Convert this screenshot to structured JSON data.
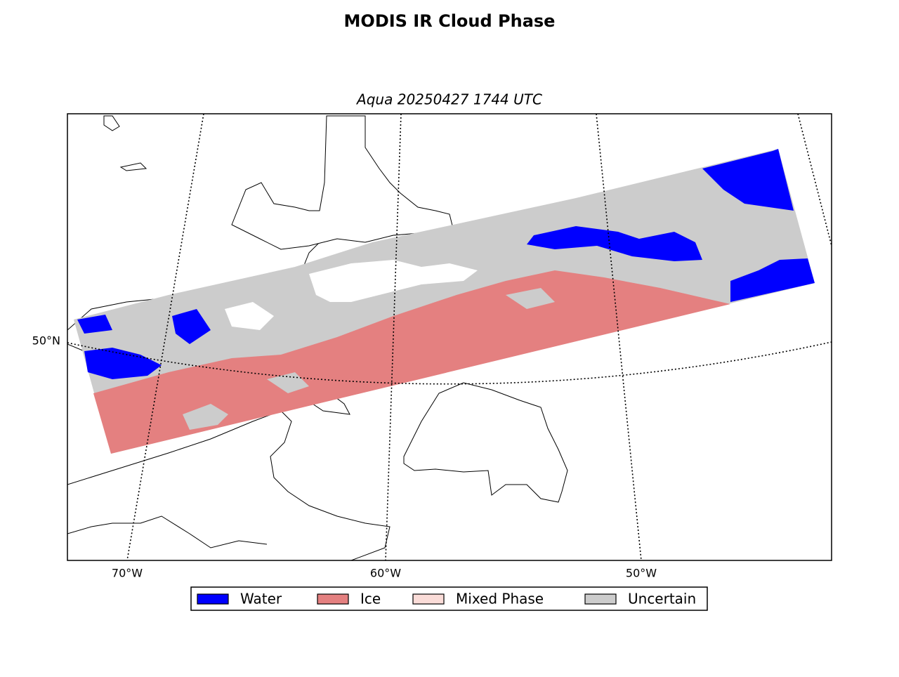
{
  "title": "MODIS IR Cloud Phase",
  "subtitle": "Aqua 20250427 1744 UTC",
  "map": {
    "longitude_labels": [
      "70°W",
      "60°W",
      "50°W"
    ],
    "latitude_labels": [
      "50°N"
    ]
  },
  "legend": {
    "items": [
      {
        "label": "Water",
        "color": "#0000ff"
      },
      {
        "label": "Ice",
        "color": "#e48080"
      },
      {
        "label": "Mixed Phase",
        "color": "#fadcd8"
      },
      {
        "label": "Uncertain",
        "color": "#cccccc"
      }
    ]
  }
}
